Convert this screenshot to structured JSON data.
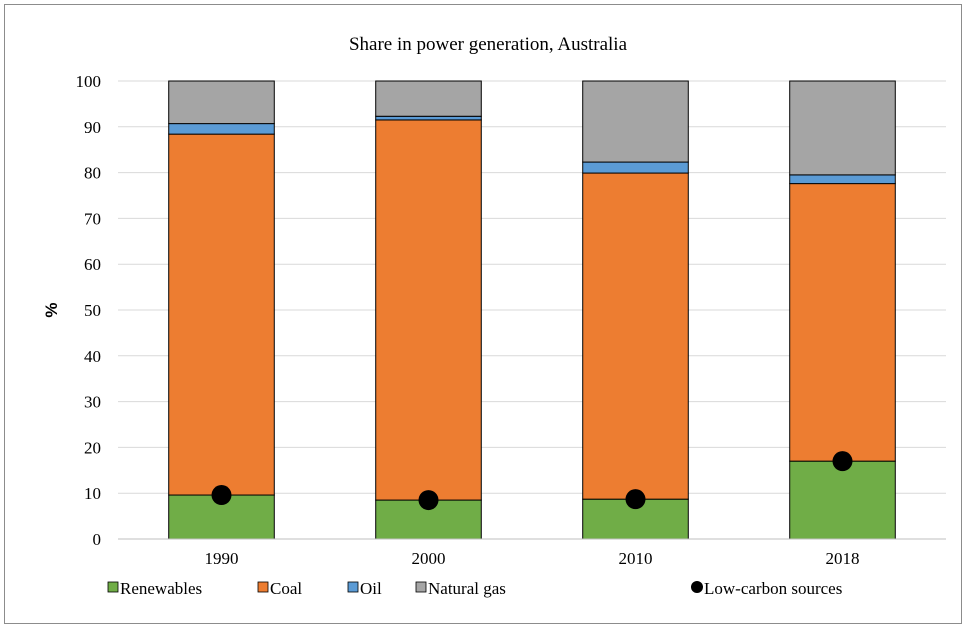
{
  "chart_data": {
    "type": "bar",
    "stacked": true,
    "title": "Share in power generation, Australia",
    "ylabel": "%",
    "ylim": [
      0,
      100
    ],
    "yticks": [
      "0",
      "10",
      "20",
      "30",
      "40",
      "50",
      "60",
      "70",
      "80",
      "90",
      "100"
    ],
    "categories": [
      "1990",
      "2000",
      "2010",
      "2018"
    ],
    "series": [
      {
        "name": "Renewables",
        "color": "#70ad47",
        "values": [
          9.6,
          8.5,
          8.7,
          17.0
        ]
      },
      {
        "name": "Coal",
        "color": "#ed7d31",
        "values": [
          78.8,
          83.0,
          71.2,
          60.6
        ]
      },
      {
        "name": "Oil",
        "color": "#5b9bd5",
        "values": [
          2.3,
          0.8,
          2.4,
          1.9
        ]
      },
      {
        "name": "Natural gas",
        "color": "#a5a5a5",
        "values": [
          9.3,
          7.7,
          17.7,
          20.5
        ]
      }
    ],
    "markers": {
      "name": "Low-carbon sources",
      "color": "#000000",
      "values": [
        9.6,
        8.5,
        8.7,
        17.0
      ]
    },
    "grid": true,
    "legend_position": "bottom"
  }
}
